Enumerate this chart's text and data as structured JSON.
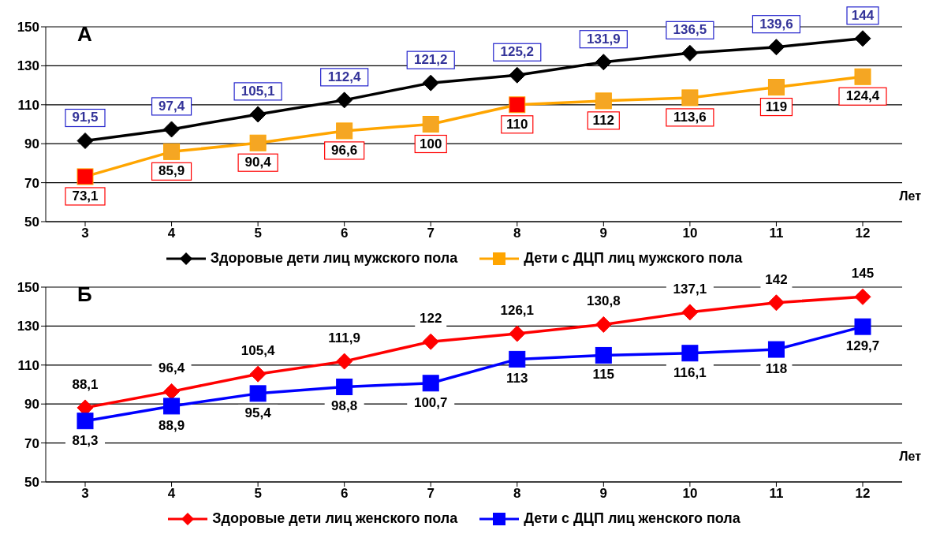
{
  "chart_data": [
    {
      "type": "line",
      "title": "А",
      "xlabel": "Лет",
      "categories": [
        "3",
        "4",
        "5",
        "6",
        "7",
        "8",
        "9",
        "10",
        "11",
        "12"
      ],
      "ylim": [
        50,
        150
      ],
      "yticks": [
        50,
        70,
        90,
        110,
        130,
        150
      ],
      "grid": "y",
      "legend": "bottom",
      "series": [
        {
          "name": "Здоровые дети лиц мужского пола",
          "color": "#000000",
          "marker": "diamond",
          "values": [
            91.5,
            97.4,
            105.1,
            112.4,
            121.2,
            125.2,
            131.9,
            136.5,
            139.6,
            144
          ],
          "value_labels": [
            "91,5",
            "97,4",
            "105,1",
            "112,4",
            "121,2",
            "125,2",
            "131,9",
            "136,5",
            "139,6",
            "144"
          ]
        },
        {
          "name": "Дети с ДЦП лиц мужского пола",
          "color": "#ffa500",
          "marker": "square",
          "colors": [
            "#ff0000",
            "#f5a623",
            "#f5a623",
            "#f5a623",
            "#f5a623",
            "#ff0000",
            "#f5a623",
            "#f5a623",
            "#f5a623",
            "#f5a623"
          ],
          "values": [
            73.1,
            85.9,
            90.4,
            96.6,
            100,
            110,
            112,
            113.6,
            119,
            124.4
          ],
          "value_labels": [
            "73,1",
            "85,9",
            "90,4",
            "96,6",
            "100",
            "110",
            "112",
            "113,6",
            "119",
            "124,4"
          ]
        }
      ]
    },
    {
      "type": "line",
      "title": "Б",
      "xlabel": "Лет",
      "categories": [
        "3",
        "4",
        "5",
        "6",
        "7",
        "8",
        "9",
        "10",
        "11",
        "12"
      ],
      "ylim": [
        50,
        150
      ],
      "yticks": [
        50,
        70,
        90,
        110,
        130,
        150
      ],
      "grid": "y",
      "legend": "bottom",
      "series": [
        {
          "name": "Здоровые дети лиц женского пола",
          "color": "#ff0000",
          "marker": "diamond",
          "values": [
            88.1,
            96.4,
            105.4,
            111.9,
            122,
            126.1,
            130.8,
            137.1,
            142,
            145
          ],
          "value_labels": [
            "88,1",
            "96,4",
            "105,4",
            "111,9",
            "122",
            "126,1",
            "130,8",
            "137,1",
            "142",
            "145"
          ]
        },
        {
          "name": "Дети с ДЦП лиц женского пола",
          "color": "#0000ff",
          "marker": "square",
          "values": [
            81.3,
            88.9,
            95.4,
            98.8,
            100.7,
            113,
            115,
            116.1,
            118,
            129.7
          ],
          "value_labels": [
            "81,3",
            "88,9",
            "95,4",
            "98,8",
            "100,7",
            "113",
            "115",
            "116,1",
            "118",
            "129,7"
          ]
        }
      ]
    }
  ]
}
